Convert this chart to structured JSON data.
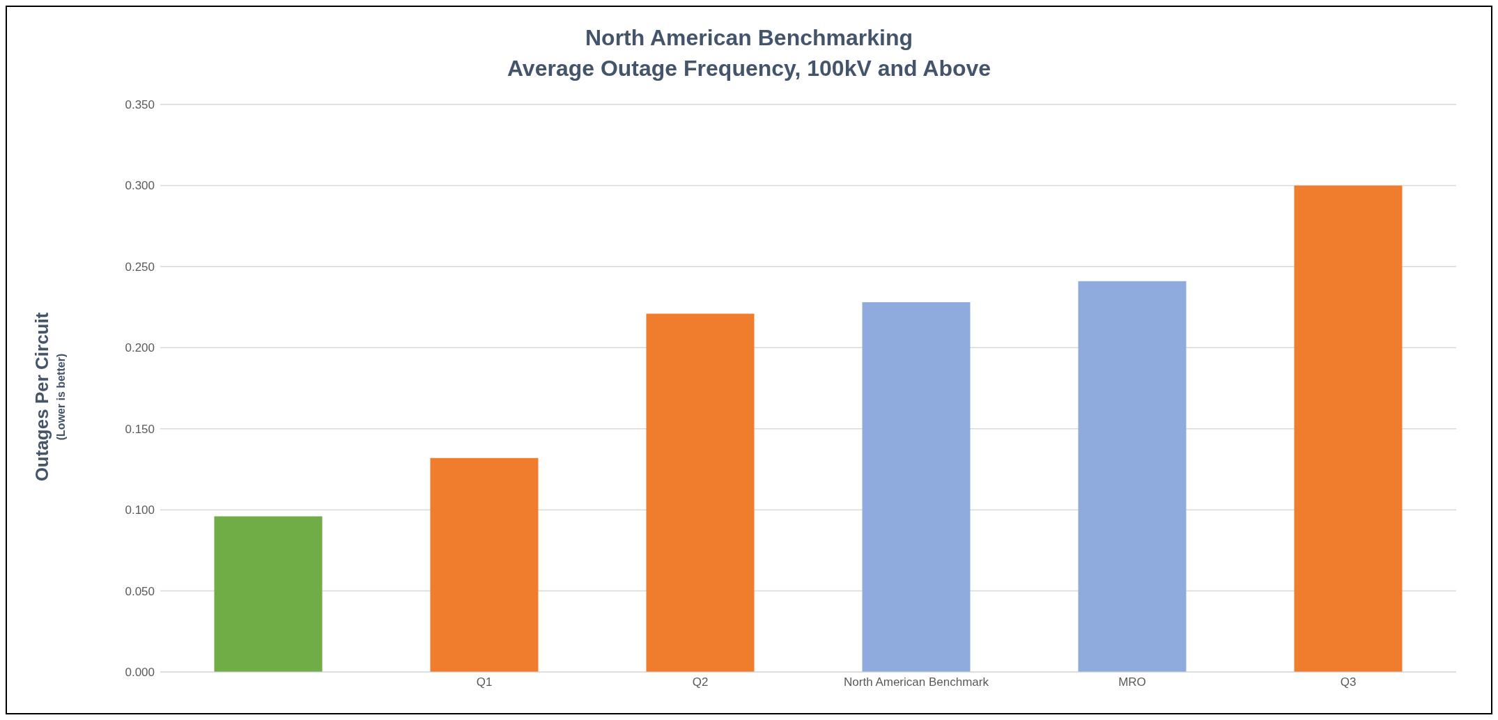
{
  "chart_data": {
    "type": "bar",
    "title": "North American Benchmarking",
    "subtitle": "Average Outage Frequency, 100kV and Above",
    "ylabel": "Outages Per Circuit",
    "annotations": [
      "(Lower is better)"
    ],
    "categories": [
      null,
      "Q1",
      "Q2",
      "North American Benchmark",
      "MRO",
      "Q3"
    ],
    "values": [
      0.096,
      0.132,
      0.221,
      0.228,
      0.241,
      0.3
    ],
    "colors": [
      "#70ad47",
      "#f07c2e",
      "#f07c2e",
      "#8faadc",
      "#8faadc",
      "#f07c2e"
    ],
    "ylim": [
      0,
      0.35
    ],
    "yticks": [
      {
        "value": 0,
        "label": "0.000"
      },
      {
        "value": 0.05,
        "label": "0.050"
      },
      {
        "value": 0.1,
        "label": "0.100"
      },
      {
        "value": 0.15,
        "label": "0.150"
      },
      {
        "value": 0.2,
        "label": "0.200"
      },
      {
        "value": 0.25,
        "label": "0.250"
      },
      {
        "value": 0.3,
        "label": "0.300"
      },
      {
        "value": 0.35,
        "label": "0.350"
      }
    ],
    "grid": "y",
    "legend": false
  }
}
